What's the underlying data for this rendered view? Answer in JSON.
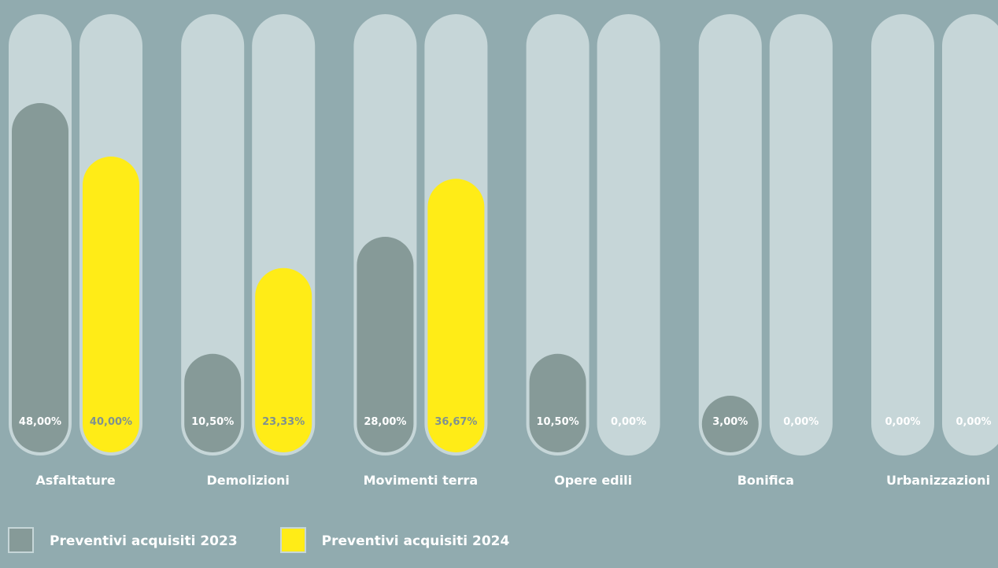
{
  "chart_data": {
    "type": "bar",
    "categories": [
      "Asfaltature",
      "Demolizioni",
      "Movimenti terra",
      "Opere edili",
      "Bonifica",
      "Urbanizzazioni"
    ],
    "series": [
      {
        "name": "Preventivi acquisiti 2023",
        "values": [
          48.0,
          10.5,
          28.0,
          10.5,
          3.0,
          0.0
        ],
        "labels": [
          "48,00%",
          "10,50%",
          "28,00%",
          "10,50%",
          "3,00%",
          "0,00%"
        ],
        "color": "#869a98"
      },
      {
        "name": "Preventivi acquisiti 2024",
        "values": [
          40.0,
          23.33,
          36.67,
          0.0,
          0.0,
          0.0
        ],
        "labels": [
          "40,00%",
          "23,33%",
          "36,67%",
          "0,00%",
          "0,00%",
          "0,00%"
        ],
        "color": "#ffec17"
      }
    ],
    "ylim": [
      0,
      60
    ],
    "track_color": "#c6d6d8",
    "legend_position": "bottom-left"
  },
  "legend": {
    "items": [
      {
        "label": "Preventivi acquisiti 2023",
        "color": "#869a98"
      },
      {
        "label": "Preventivi acquisiti 2024",
        "color": "#ffec17"
      }
    ]
  }
}
